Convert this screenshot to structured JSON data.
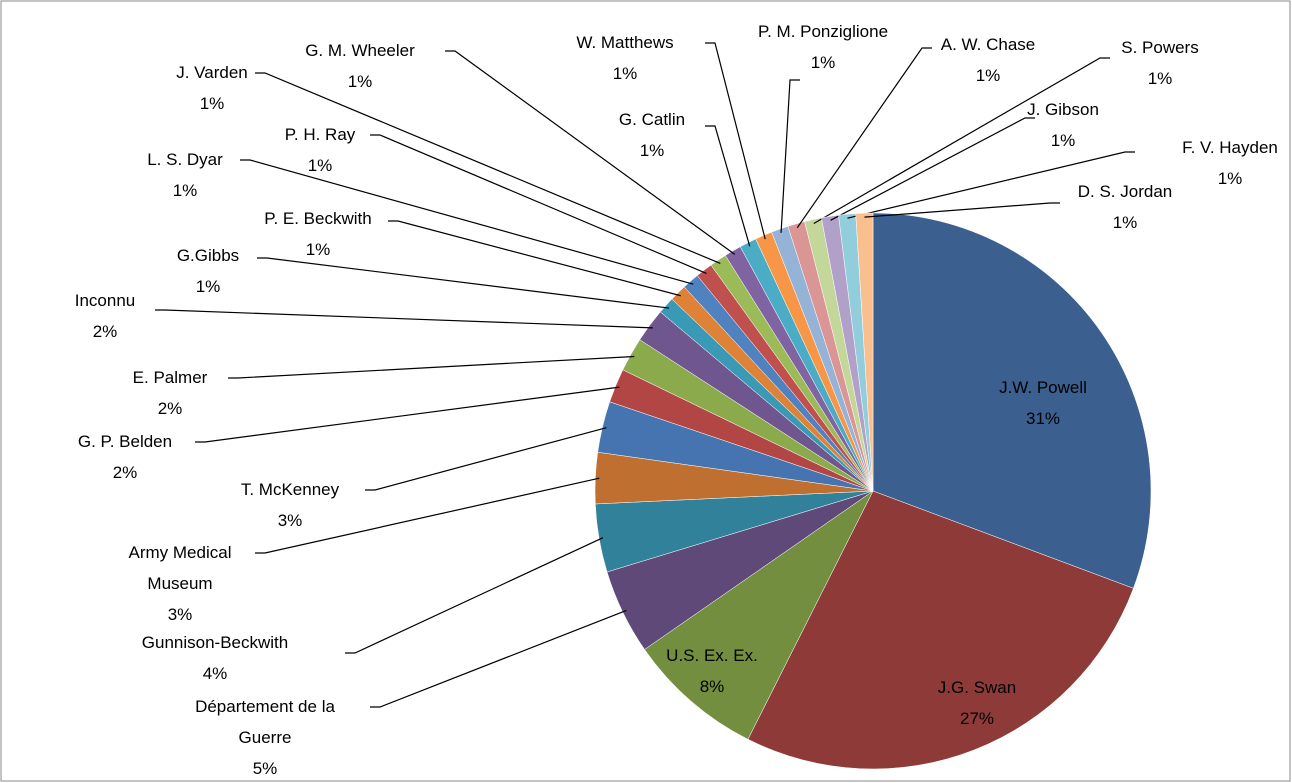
{
  "chart_data": {
    "type": "pie",
    "categories": [
      "J.W. Powell",
      "J.G. Swan",
      "U.S. Ex. Ex.",
      "Département de la Guerre",
      "Gunnison-Beckwith",
      "Army Medical Museum",
      "T. McKenney",
      "G. P. Belden",
      "E. Palmer",
      "Inconnu",
      "G.Gibbs",
      "P. E. Beckwith",
      "L. S. Dyar",
      "P. H. Ray",
      "J. Varden",
      "G. M. Wheeler",
      "G. Catlin",
      "W. Matthews",
      "P. M. Ponziglione",
      "A. W. Chase",
      "S. Powers",
      "J. Gibson",
      "F. V. Hayden",
      "D. S. Jordan"
    ],
    "values": [
      31,
      27,
      8,
      5,
      4,
      3,
      3,
      2,
      2,
      2,
      1,
      1,
      1,
      1,
      1,
      1,
      1,
      1,
      1,
      1,
      1,
      1,
      1,
      1
    ],
    "value_labels": [
      "31%",
      "27%",
      "8%",
      "5%",
      "4%",
      "3%",
      "3%",
      "2%",
      "2%",
      "2%",
      "1%",
      "1%",
      "1%",
      "1%",
      "1%",
      "1%",
      "1%",
      "1%",
      "1%",
      "1%",
      "1%",
      "1%",
      "1%",
      "1%"
    ],
    "colors": [
      "#3B5F8F",
      "#8E3A39",
      "#738E3F",
      "#5E4979",
      "#31819A",
      "#BF6F2F",
      "#4674B0",
      "#B24644",
      "#8AAA4C",
      "#70568F",
      "#3A9AB5",
      "#DE8237",
      "#4F82BE",
      "#C0504D",
      "#9BBB59",
      "#8064A2",
      "#4BACC6",
      "#F79646",
      "#95B3D7",
      "#DA9694",
      "#C4D79B",
      "#B1A0C7",
      "#92CDDC",
      "#FABF8F"
    ]
  }
}
